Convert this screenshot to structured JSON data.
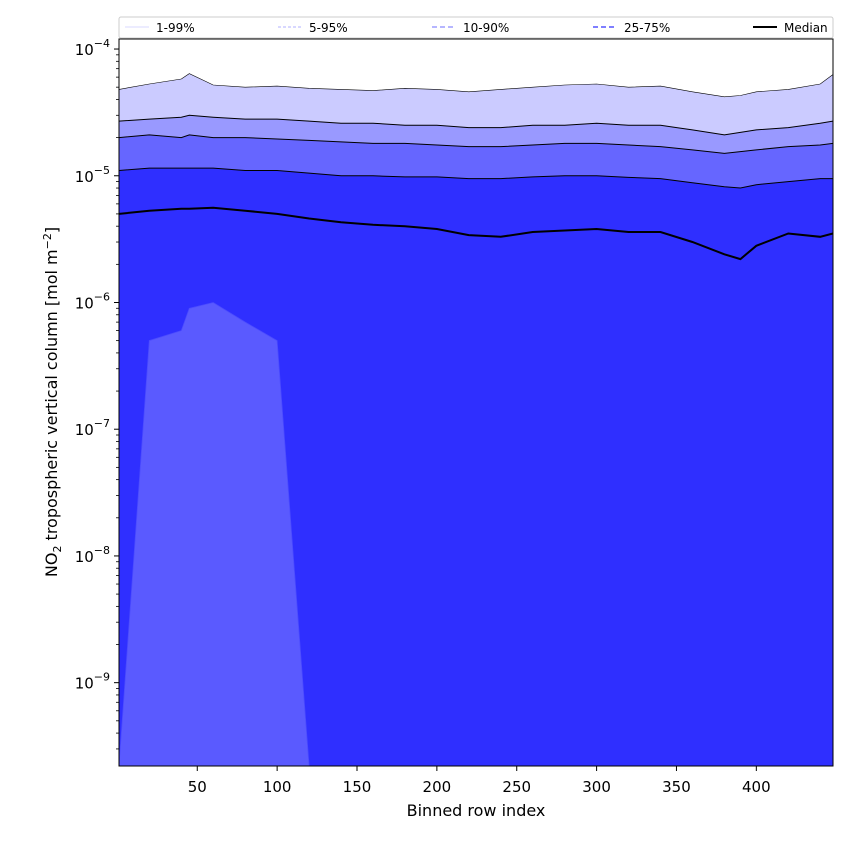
{
  "chart_data": {
    "type": "area",
    "title": "",
    "xlabel": "Binned row index",
    "ylabel_main": "NO",
    "ylabel_sub": "2",
    "ylabel_rest": " tropospheric vertical column [mol m",
    "ylabel_sup": "−2",
    "ylabel_end": "]",
    "xlim": [
      1,
      448
    ],
    "ylim": [
      2.2e-10,
      0.00012
    ],
    "yscale": "log",
    "grid": false,
    "legend_position": "top",
    "xticks": [
      {
        "value": 50,
        "label": "50"
      },
      {
        "value": 100,
        "label": "100"
      },
      {
        "value": 150,
        "label": "150"
      },
      {
        "value": 200,
        "label": "200"
      },
      {
        "value": 250,
        "label": "250"
      },
      {
        "value": 300,
        "label": "300"
      },
      {
        "value": 350,
        "label": "350"
      },
      {
        "value": 400,
        "label": "400"
      }
    ],
    "yticks": [
      {
        "value": 1e-09,
        "base": "10",
        "exp": "−9"
      },
      {
        "value": 1e-08,
        "base": "10",
        "exp": "−8"
      },
      {
        "value": 1e-07,
        "base": "10",
        "exp": "−7"
      },
      {
        "value": 1e-06,
        "base": "10",
        "exp": "−6"
      },
      {
        "value": 1e-05,
        "base": "10",
        "exp": "−5"
      },
      {
        "value": 0.0001,
        "base": "10",
        "exp": "−4"
      }
    ],
    "x": [
      1,
      20,
      40,
      45,
      60,
      80,
      100,
      120,
      140,
      160,
      180,
      200,
      220,
      240,
      260,
      280,
      300,
      320,
      340,
      360,
      380,
      390,
      400,
      420,
      440,
      448
    ],
    "series": [
      {
        "name": "1-99%",
        "lower": [
          2e-10,
          2e-10,
          2e-10,
          2e-10,
          2e-10,
          2e-10,
          2e-10,
          2e-10,
          2e-10,
          2e-10,
          2e-10,
          2e-10,
          2e-10,
          2e-10,
          2e-10,
          2e-10,
          2e-10,
          2e-10,
          2e-10,
          2e-10,
          2e-10,
          2e-10,
          2e-10,
          2e-10,
          2e-10,
          2e-10
        ],
        "upper": [
          4.8e-05,
          5.3e-05,
          5.8e-05,
          6.4e-05,
          5.2e-05,
          5e-05,
          5.1e-05,
          4.9e-05,
          4.8e-05,
          4.7e-05,
          4.9e-05,
          4.8e-05,
          4.6e-05,
          4.8e-05,
          5e-05,
          5.2e-05,
          5.3e-05,
          5e-05,
          5.1e-05,
          4.6e-05,
          4.2e-05,
          4.3e-05,
          4.6e-05,
          4.8e-05,
          5.3e-05,
          6.3e-05
        ]
      },
      {
        "name": "5-95%",
        "lower": [
          2e-10,
          2e-10,
          2e-10,
          2e-10,
          2e-10,
          2e-10,
          2e-10,
          2e-10,
          2e-10,
          2e-10,
          2e-10,
          2e-10,
          2e-10,
          2e-10,
          2e-10,
          2e-10,
          2e-10,
          2e-10,
          2e-10,
          2e-10,
          2e-10,
          2e-10,
          2e-10,
          2e-10,
          2e-10,
          2e-10
        ],
        "upper": [
          2.7e-05,
          2.8e-05,
          2.9e-05,
          3e-05,
          2.9e-05,
          2.8e-05,
          2.8e-05,
          2.7e-05,
          2.6e-05,
          2.6e-05,
          2.5e-05,
          2.5e-05,
          2.4e-05,
          2.4e-05,
          2.5e-05,
          2.5e-05,
          2.6e-05,
          2.5e-05,
          2.5e-05,
          2.3e-05,
          2.1e-05,
          2.2e-05,
          2.3e-05,
          2.4e-05,
          2.6e-05,
          2.7e-05
        ]
      },
      {
        "name": "10-90%",
        "lower": [
          2e-10,
          2e-10,
          2e-10,
          2e-10,
          2e-10,
          2e-10,
          2e-10,
          2e-10,
          2e-10,
          2e-10,
          2e-10,
          2e-10,
          2e-10,
          2e-10,
          2e-10,
          2e-10,
          2e-10,
          2e-10,
          2e-10,
          2e-10,
          2e-10,
          2e-10,
          2e-10,
          2e-10,
          2e-10,
          2e-10
        ],
        "upper": [
          2e-05,
          2.1e-05,
          2e-05,
          2.1e-05,
          2e-05,
          2e-05,
          1.95e-05,
          1.9e-05,
          1.85e-05,
          1.8e-05,
          1.8e-05,
          1.75e-05,
          1.7e-05,
          1.7e-05,
          1.75e-05,
          1.8e-05,
          1.8e-05,
          1.75e-05,
          1.7e-05,
          1.6e-05,
          1.5e-05,
          1.55e-05,
          1.6e-05,
          1.7e-05,
          1.75e-05,
          1.8e-05
        ]
      },
      {
        "name": "25-75%",
        "lower": [
          2e-10,
          5e-07,
          6e-07,
          9e-07,
          1e-06,
          7e-07,
          5e-07,
          2e-10,
          2e-10,
          2e-10,
          2e-10,
          2e-10,
          2e-10,
          2e-10,
          2e-10,
          2e-10,
          2e-10,
          2e-10,
          2e-10,
          2e-10,
          2e-10,
          2e-10,
          2e-10,
          2e-10,
          2e-10,
          2e-10
        ],
        "upper": [
          1.1e-05,
          1.15e-05,
          1.15e-05,
          1.15e-05,
          1.15e-05,
          1.1e-05,
          1.1e-05,
          1.05e-05,
          1e-05,
          1e-05,
          9.8e-06,
          9.8e-06,
          9.5e-06,
          9.5e-06,
          9.8e-06,
          1e-05,
          1e-05,
          9.7e-06,
          9.5e-06,
          8.8e-06,
          8.2e-06,
          8e-06,
          8.5e-06,
          9e-06,
          9.5e-06,
          9.5e-06
        ]
      },
      {
        "name": "Median",
        "values": [
          5e-06,
          5.3e-06,
          5.5e-06,
          5.5e-06,
          5.6e-06,
          5.3e-06,
          5e-06,
          4.6e-06,
          4.3e-06,
          4.1e-06,
          4e-06,
          3.8e-06,
          3.4e-06,
          3.3e-06,
          3.6e-06,
          3.7e-06,
          3.8e-06,
          3.6e-06,
          3.6e-06,
          3e-06,
          2.4e-06,
          2.2e-06,
          2.8e-06,
          3.5e-06,
          3.3e-06,
          3.5e-06
        ]
      }
    ],
    "colors": {
      "band_1_99": "#cbcbff",
      "band_5_95": "#9999ff",
      "band_10_90": "#6666ff",
      "band_25_75": "#2f2fff",
      "low_tail": "#5a5aff",
      "median": "#000000",
      "legend_1_99": "#d8d8ff",
      "legend_5_95": "#b0b0ff",
      "legend_10_90": "#8a8aff",
      "legend_25_75": "#5555ff"
    },
    "legend": {
      "items": [
        {
          "label": "1-99%",
          "style": "thin"
        },
        {
          "label": "5-95%",
          "style": "thin-dashed"
        },
        {
          "label": "10-90%",
          "style": "dashed"
        },
        {
          "label": "25-75%",
          "style": "dashed"
        },
        {
          "label": "Median",
          "style": "solid"
        }
      ]
    }
  }
}
